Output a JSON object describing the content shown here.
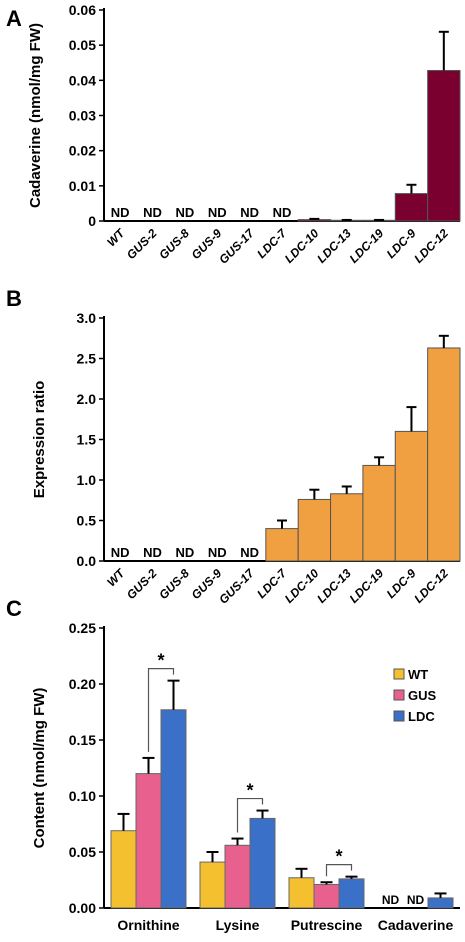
{
  "chart_data": [
    {
      "panel": "A",
      "type": "bar",
      "ylabel": "Cadaverine (nmol/mg FW)",
      "ylim": [
        0,
        0.06
      ],
      "yticks": [
        "0",
        "0.01",
        "0.02",
        "0.03",
        "0.04",
        "0.05",
        "0.06"
      ],
      "categories": [
        "WT",
        "GUS-2",
        "GUS-8",
        "GUS-9",
        "GUS-17",
        "LDC-7",
        "LDC-10",
        "LDC-13",
        "LDC-19",
        "LDC-9",
        "LDC-12"
      ],
      "values": [
        null,
        null,
        null,
        null,
        null,
        null,
        0.0004,
        0.0002,
        0.0002,
        0.0078,
        0.0428
      ],
      "errors": [
        null,
        null,
        null,
        null,
        null,
        null,
        0.0002,
        0.0001,
        0.0001,
        0.0025,
        0.011
      ],
      "labels": [
        "ND",
        "ND",
        "ND",
        "ND",
        "ND",
        "ND",
        "",
        "",
        "",
        "",
        ""
      ],
      "bar_color": "#7a0030",
      "grid": false
    },
    {
      "panel": "B",
      "type": "bar",
      "ylabel": "Expression ratio",
      "ylim": [
        0,
        3.0
      ],
      "yticks": [
        "0.0",
        "0.5",
        "1.0",
        "1.5",
        "2.0",
        "2.5",
        "3.0"
      ],
      "categories": [
        "WT",
        "GUS-2",
        "GUS-8",
        "GUS-9",
        "GUS-17",
        "LDC-7",
        "LDC-10",
        "LDC-13",
        "LDC-19",
        "LDC-9",
        "LDC-12"
      ],
      "values": [
        null,
        null,
        null,
        null,
        null,
        0.4,
        0.76,
        0.83,
        1.18,
        1.6,
        2.63
      ],
      "errors": [
        null,
        null,
        null,
        null,
        null,
        0.1,
        0.12,
        0.09,
        0.1,
        0.3,
        0.15
      ],
      "labels": [
        "ND",
        "ND",
        "ND",
        "ND",
        "ND",
        "",
        "",
        "",
        "",
        "",
        ""
      ],
      "bar_color": "#f0a040",
      "grid": false
    },
    {
      "panel": "C",
      "type": "bar",
      "ylabel": "Content (nmol/mg FW)",
      "ylim": [
        0,
        0.25
      ],
      "yticks": [
        "0.00",
        "0.05",
        "0.10",
        "0.15",
        "0.20",
        "0.25"
      ],
      "categories": [
        "Ornithine",
        "Lysine",
        "Putrescine",
        "Cadaverine"
      ],
      "series": [
        {
          "name": "WT",
          "color": "#f5c030",
          "values": [
            0.069,
            0.041,
            0.027,
            null
          ],
          "errors": [
            0.015,
            0.009,
            0.008,
            null
          ],
          "labels": [
            "",
            "",
            "",
            "ND"
          ]
        },
        {
          "name": "GUS",
          "color": "#e8608e",
          "values": [
            0.12,
            0.056,
            0.021,
            null
          ],
          "errors": [
            0.014,
            0.006,
            0.002,
            null
          ],
          "labels": [
            "",
            "",
            "",
            "ND"
          ]
        },
        {
          "name": "LDC",
          "color": "#3a70c8",
          "values": [
            0.177,
            0.08,
            0.026,
            0.009
          ],
          "errors": [
            0.026,
            0.007,
            0.002,
            0.004
          ],
          "labels": [
            "",
            "",
            "",
            ""
          ]
        }
      ],
      "significance": [
        {
          "category": "Ornithine",
          "label": "*"
        },
        {
          "category": "Lysine",
          "label": "*"
        },
        {
          "category": "Putrescine",
          "label": "*"
        }
      ],
      "legend": "right",
      "grid": false
    }
  ]
}
